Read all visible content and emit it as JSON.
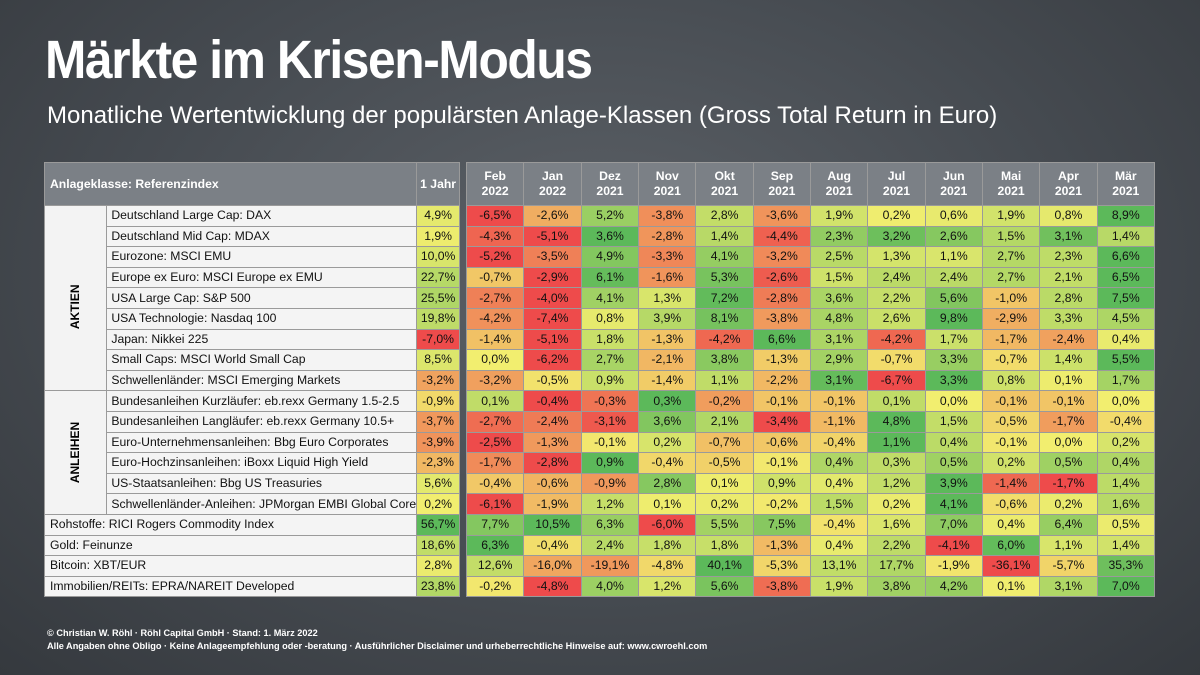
{
  "header": {
    "title": "Märkte im Krisen-Modus",
    "subtitle": "Monatliche Wertentwicklung der populärsten Anlage-Klassen (Gross Total Return in Euro)"
  },
  "table": {
    "label_header": "Anlageklasse: Referenzindex",
    "year_header": "1 Jahr",
    "months": [
      {
        "m": "Feb",
        "y": "2022"
      },
      {
        "m": "Jan",
        "y": "2022"
      },
      {
        "m": "Dez",
        "y": "2021"
      },
      {
        "m": "Nov",
        "y": "2021"
      },
      {
        "m": "Okt",
        "y": "2021"
      },
      {
        "m": "Sep",
        "y": "2021"
      },
      {
        "m": "Aug",
        "y": "2021"
      },
      {
        "m": "Jul",
        "y": "2021"
      },
      {
        "m": "Jun",
        "y": "2021"
      },
      {
        "m": "Mai",
        "y": "2021"
      },
      {
        "m": "Apr",
        "y": "2021"
      },
      {
        "m": "Mär",
        "y": "2021"
      }
    ],
    "groups": [
      {
        "label": "AKTIEN",
        "start": 0,
        "span": 9
      },
      {
        "label": "ANLEIHEN",
        "start": 9,
        "span": 6
      }
    ],
    "rows": [
      {
        "name": "Deutschland Large Cap: DAX",
        "year": 4.9,
        "values": [
          -6.5,
          -2.6,
          5.2,
          -3.8,
          2.8,
          -3.6,
          1.9,
          0.2,
          0.6,
          1.9,
          0.8,
          8.9
        ]
      },
      {
        "name": "Deutschland Mid Cap: MDAX",
        "year": 1.9,
        "values": [
          -4.3,
          -5.1,
          3.6,
          -2.8,
          1.4,
          -4.4,
          2.3,
          3.2,
          2.6,
          1.5,
          3.1,
          1.4
        ]
      },
      {
        "name": "Eurozone: MSCI EMU",
        "year": 10.0,
        "values": [
          -5.2,
          -3.5,
          4.9,
          -3.3,
          4.1,
          -3.2,
          2.5,
          1.3,
          1.1,
          2.7,
          2.3,
          6.6
        ]
      },
      {
        "name": "Europe ex Euro: MSCI Europe ex EMU",
        "year": 22.7,
        "values": [
          -0.7,
          -2.9,
          6.1,
          -1.6,
          5.3,
          -2.6,
          1.5,
          2.4,
          2.4,
          2.7,
          2.1,
          6.5
        ]
      },
      {
        "name": "USA Large Cap: S&P 500",
        "year": 25.5,
        "values": [
          -2.7,
          -4.0,
          4.1,
          1.3,
          7.2,
          -2.8,
          3.6,
          2.2,
          5.6,
          -1.0,
          2.8,
          7.5
        ]
      },
      {
        "name": "USA Technologie: Nasdaq 100",
        "year": 19.8,
        "values": [
          -4.2,
          -7.4,
          0.8,
          3.9,
          8.1,
          -3.8,
          4.8,
          2.6,
          9.8,
          -2.9,
          3.3,
          4.5
        ]
      },
      {
        "name": "Japan: Nikkei 225",
        "year": -7.0,
        "values": [
          -1.4,
          -5.1,
          1.8,
          -1.3,
          -4.2,
          6.6,
          3.1,
          -4.2,
          1.7,
          -1.7,
          -2.4,
          0.4
        ]
      },
      {
        "name": "Small Caps: MSCI World Small Cap",
        "year": 8.5,
        "values": [
          0.0,
          -6.2,
          2.7,
          -2.1,
          3.8,
          -1.3,
          2.9,
          -0.7,
          3.3,
          -0.7,
          1.4,
          5.5
        ]
      },
      {
        "name": "Schwellenländer: MSCI Emerging Markets",
        "year": -3.2,
        "values": [
          -3.2,
          -0.5,
          0.9,
          -1.4,
          1.1,
          -2.2,
          3.1,
          -6.7,
          3.3,
          0.8,
          0.1,
          1.7
        ]
      },
      {
        "name": "Bundesanleihen Kurzläufer: eb.rexx Germany 1.5-2.5",
        "year": -0.9,
        "values": [
          0.1,
          -0.4,
          -0.3,
          0.3,
          -0.2,
          -0.1,
          -0.1,
          0.1,
          0.0,
          -0.1,
          -0.1,
          0.0
        ]
      },
      {
        "name": "Bundesanleihen Langläufer: eb.rexx Germany 10.5+",
        "year": -3.7,
        "values": [
          -2.7,
          -2.4,
          -3.1,
          3.6,
          2.1,
          -3.4,
          -1.1,
          4.8,
          1.5,
          -0.5,
          -1.7,
          -0.4
        ]
      },
      {
        "name": "Euro-Unternehmensanleihen: Bbg Euro Corporates",
        "year": -3.9,
        "values": [
          -2.5,
          -1.3,
          -0.1,
          0.2,
          -0.7,
          -0.6,
          -0.4,
          1.1,
          0.4,
          -0.1,
          0.0,
          0.2
        ]
      },
      {
        "name": "Euro-Hochzinsanleihen: iBoxx Liquid High Yield",
        "year": -2.3,
        "values": [
          -1.7,
          -2.8,
          0.9,
          -0.4,
          -0.5,
          -0.1,
          0.4,
          0.3,
          0.5,
          0.2,
          0.5,
          0.4
        ]
      },
      {
        "name": "US-Staatsanleihen: Bbg US Treasuries",
        "year": 5.6,
        "values": [
          -0.4,
          -0.6,
          -0.9,
          2.8,
          0.1,
          0.9,
          0.4,
          1.2,
          3.9,
          -1.4,
          -1.7,
          1.4
        ]
      },
      {
        "name": "Schwellenländer-Anleihen: JPMorgan EMBI Global Core",
        "year": 0.2,
        "values": [
          -6.1,
          -1.9,
          1.2,
          0.1,
          0.2,
          -0.2,
          1.5,
          0.2,
          4.1,
          -0.6,
          0.2,
          1.6
        ]
      },
      {
        "name": "Rohstoffe: RICI Rogers Commodity Index",
        "year": 56.7,
        "values": [
          7.7,
          10.5,
          6.3,
          -6.0,
          5.5,
          7.5,
          -0.4,
          1.6,
          7.0,
          0.4,
          6.4,
          0.5
        ]
      },
      {
        "name": "Gold: Feinunze",
        "year": 18.6,
        "values": [
          6.3,
          -0.4,
          2.4,
          1.8,
          1.8,
          -1.3,
          0.4,
          2.2,
          -4.1,
          6.0,
          1.1,
          1.4
        ]
      },
      {
        "name": "Bitcoin: XBT/EUR",
        "year": 2.8,
        "values": [
          12.6,
          -16.0,
          -19.1,
          -4.8,
          40.1,
          -5.3,
          13.1,
          17.7,
          -1.9,
          -36.1,
          -5.7,
          35.3
        ]
      },
      {
        "name": "Immobilien/REITs: EPRA/NAREIT Developed",
        "year": 23.8,
        "values": [
          -0.2,
          -4.8,
          4.0,
          1.2,
          5.6,
          -3.8,
          1.9,
          3.8,
          4.2,
          0.1,
          3.1,
          7.0
        ]
      }
    ]
  },
  "footer": {
    "line1": "© Christian W. Röhl · Röhl Capital GmbH · Stand: 1. März 2022",
    "line2": "Alle Angaben ohne Obligo · Keine Anlageempfehlung oder -beratung · Ausführlicher Disclaimer und urheberrechtliche Hinweise auf: www.cwroehl.com"
  },
  "colors": {
    "red": "#ee4b4b",
    "yellow": "#f2ee6f",
    "green": "#5cb95a"
  }
}
